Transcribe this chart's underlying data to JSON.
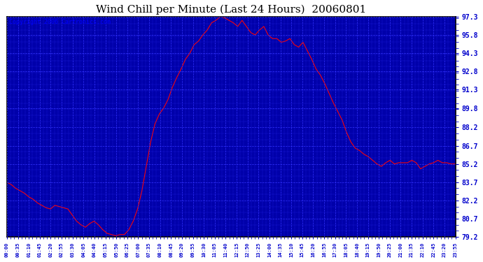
{
  "title": "Wind Chill per Minute (Last 24 Hours)  20060801",
  "copyright": "Copyright 2006 Cartronics.com",
  "fig_bg_color": "#ffffff",
  "plot_bg_color": "#0000aa",
  "line_color": "#ff0000",
  "grid_color": "#3333ff",
  "title_color": "#000000",
  "ytick_color": "#0000cc",
  "xtick_color": "#0000cc",
  "copyright_color": "#0000ff",
  "yticks": [
    79.2,
    80.7,
    82.2,
    83.7,
    85.2,
    86.7,
    88.2,
    89.8,
    91.3,
    92.8,
    94.3,
    95.8,
    97.3
  ],
  "ymin": 79.2,
  "ymax": 97.3,
  "xtick_labels": [
    "00:00",
    "00:35",
    "01:10",
    "01:45",
    "02:20",
    "02:55",
    "03:30",
    "04:05",
    "04:40",
    "05:15",
    "05:50",
    "06:25",
    "07:00",
    "07:35",
    "08:10",
    "08:45",
    "09:20",
    "09:55",
    "10:30",
    "11:05",
    "11:40",
    "12:15",
    "12:50",
    "13:25",
    "14:00",
    "14:35",
    "15:10",
    "15:45",
    "16:20",
    "16:55",
    "17:30",
    "18:05",
    "18:40",
    "19:15",
    "19:50",
    "20:25",
    "21:00",
    "21:35",
    "22:10",
    "22:45",
    "23:20",
    "23:55"
  ],
  "data_y": [
    83.7,
    83.5,
    83.2,
    83.0,
    82.8,
    82.5,
    82.3,
    82.0,
    81.8,
    81.6,
    81.5,
    81.8,
    81.7,
    81.6,
    81.5,
    81.0,
    80.5,
    80.2,
    80.0,
    80.3,
    80.5,
    80.2,
    79.8,
    79.5,
    79.4,
    79.3,
    79.4,
    79.4,
    79.8,
    80.5,
    81.5,
    83.0,
    85.0,
    87.0,
    88.5,
    89.3,
    89.8,
    90.5,
    91.5,
    92.3,
    93.0,
    93.8,
    94.3,
    95.0,
    95.3,
    95.8,
    96.2,
    96.8,
    97.0,
    97.3,
    97.2,
    97.0,
    96.8,
    96.5,
    97.0,
    96.5,
    96.0,
    95.8,
    96.2,
    96.5,
    95.8,
    95.5,
    95.5,
    95.2,
    95.3,
    95.5,
    95.0,
    94.8,
    95.2,
    94.5,
    93.8,
    93.0,
    92.5,
    91.8,
    91.0,
    90.2,
    89.5,
    88.8,
    87.8,
    87.0,
    86.5,
    86.3,
    86.0,
    85.8,
    85.5,
    85.2,
    85.0,
    85.3,
    85.5,
    85.2,
    85.3,
    85.3,
    85.3,
    85.5,
    85.3,
    84.8,
    85.0,
    85.2,
    85.3,
    85.5,
    85.3,
    85.3,
    85.2,
    85.2
  ],
  "title_fontsize": 11,
  "copyright_fontsize": 6,
  "ytick_fontsize": 7,
  "xtick_fontsize": 5
}
